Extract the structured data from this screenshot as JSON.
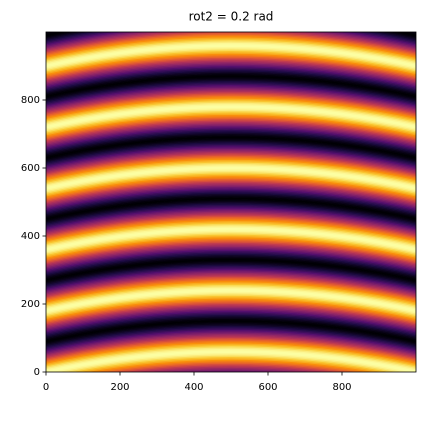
{
  "chart_data": {
    "type": "heatmap",
    "title": "rot2 = 0.2 rad",
    "xlim": [
      0,
      1000
    ],
    "ylim": [
      0,
      1000
    ],
    "xticks": [
      0,
      200,
      400,
      600,
      800
    ],
    "yticks": [
      0,
      200,
      400,
      600,
      800
    ]
  }
}
